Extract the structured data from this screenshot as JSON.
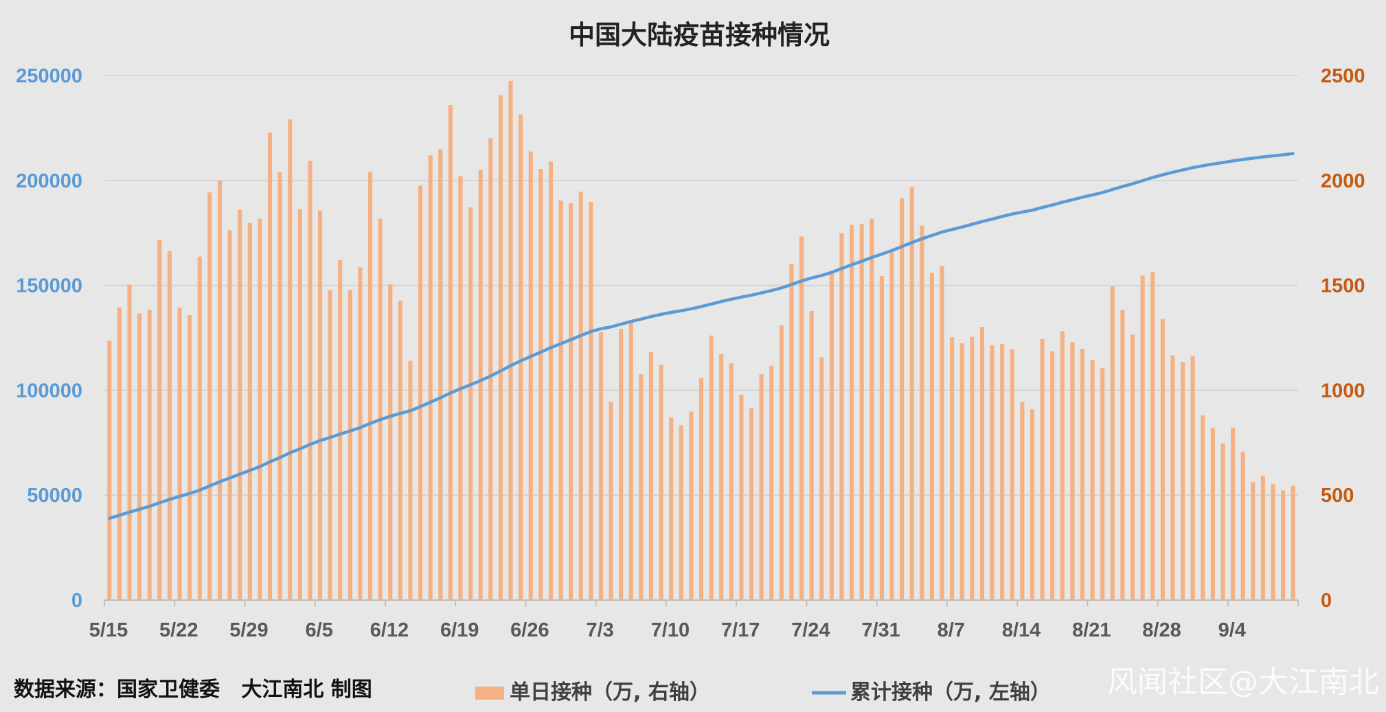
{
  "chart_data": {
    "type": "bar",
    "title": "中国大陆疫苗接种情况",
    "x_ticks": [
      "5/15",
      "5/22",
      "5/29",
      "6/5",
      "6/12",
      "6/19",
      "6/26",
      "7/3",
      "7/10",
      "7/17",
      "7/24",
      "7/31",
      "8/7",
      "8/14",
      "8/21",
      "8/28",
      "9/4"
    ],
    "y_left": {
      "ticks": [
        "0",
        "50000",
        "100000",
        "150000",
        "200000",
        "250000"
      ],
      "ylim": [
        0,
        250000
      ],
      "color": "#5b9bd5"
    },
    "y_right": {
      "ticks": [
        "0",
        "500",
        "1000",
        "1500",
        "2000",
        "2500"
      ],
      "ylim": [
        0,
        2500
      ],
      "color": "#c55a11"
    },
    "grid": true,
    "series": [
      {
        "name": "单日接种（万, 右轴）",
        "type": "bar",
        "axis": "right",
        "color": "#f4b183",
        "values": [
          1236,
          1395,
          1503,
          1366,
          1383,
          1718,
          1664,
          1394,
          1358,
          1637,
          1943,
          1998,
          1763,
          1860,
          1797,
          1818,
          2228,
          2039,
          2291,
          1863,
          2094,
          1857,
          1477,
          1620,
          1478,
          1586,
          2040,
          1818,
          1505,
          1427,
          1140,
          1975,
          2119,
          2149,
          2359,
          2021,
          1872,
          2050,
          2201,
          2406,
          2474,
          2315,
          2138,
          2055,
          2090,
          1904,
          1891,
          1946,
          1898,
          1278,
          946,
          1293,
          1325,
          1076,
          1183,
          1122,
          871,
          833,
          898,
          1059,
          1261,
          1172,
          1128,
          979,
          914,
          1076,
          1116,
          1310,
          1600,
          1733,
          1378,
          1157,
          1567,
          1748,
          1788,
          1792,
          1818,
          1544,
          1667,
          1915,
          1968,
          1785,
          1560,
          1592,
          1253,
          1224,
          1255,
          1302,
          1214,
          1220,
          1196,
          945,
          909,
          1244,
          1186,
          1282,
          1230,
          1197,
          1144,
          1105,
          1495,
          1383,
          1265,
          1547,
          1563,
          1339,
          1166,
          1134,
          1162,
          880,
          820,
          747,
          822,
          706,
          563,
          592,
          552,
          523,
          544
        ]
      },
      {
        "name": "累计接种（万, 左轴）",
        "type": "line",
        "axis": "left",
        "color": "#5b9bd5",
        "values": [
          39000,
          40400,
          41900,
          43300,
          44700,
          46400,
          48000,
          49400,
          50800,
          52400,
          54400,
          56400,
          58200,
          60000,
          61800,
          63600,
          65900,
          67900,
          70200,
          72100,
          74200,
          76000,
          77500,
          79100,
          80600,
          82200,
          84200,
          86000,
          87600,
          89000,
          90200,
          92200,
          94300,
          96400,
          98700,
          100700,
          102600,
          104600,
          106800,
          109200,
          111700,
          114000,
          116100,
          118200,
          120300,
          122200,
          124100,
          126100,
          128000,
          129300,
          130200,
          131500,
          132800,
          133900,
          135100,
          136200,
          137100,
          137900,
          138800,
          139900,
          141100,
          142300,
          143400,
          144400,
          145300,
          146400,
          147500,
          148800,
          150400,
          152100,
          153500,
          154700,
          156200,
          158000,
          159800,
          161500,
          163300,
          164900,
          166600,
          168500,
          170400,
          172200,
          173800,
          175400,
          176600,
          177800,
          179100,
          180400,
          181600,
          182800,
          184000,
          184900,
          185800,
          187100,
          188300,
          189600,
          190800,
          192000,
          193100,
          194200,
          195700,
          197100,
          198400,
          199900,
          201400,
          202700,
          203900,
          205000,
          206100,
          207000,
          207800,
          208500,
          209300,
          210000,
          210600,
          211200,
          211700,
          212200,
          212800
        ]
      }
    ]
  },
  "source_text": "数据来源：国家卫健委   大江南北 制图",
  "watermark": "风闻社区@大江南北"
}
